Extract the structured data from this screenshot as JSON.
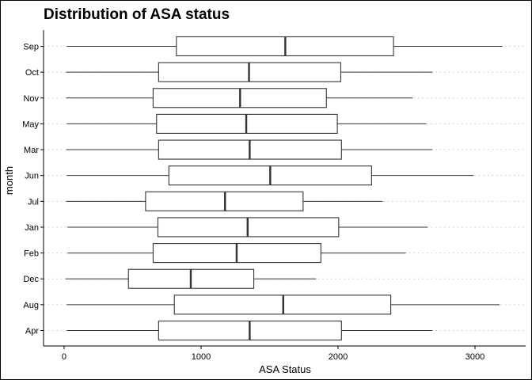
{
  "chart_data": {
    "type": "boxplot",
    "orientation": "horizontal",
    "title": "Distribution of ASA status",
    "xlabel": "ASA Status",
    "ylabel": "month",
    "xlim": [
      -150,
      3370
    ],
    "x_ticks": [
      0,
      1000,
      2000,
      3000
    ],
    "x_tick_labels": [
      "0",
      "1000",
      "2000",
      "3000"
    ],
    "grid": "dotted horizontal lines at each category",
    "categories": [
      "Apr",
      "Aug",
      "Dec",
      "Feb",
      "Jan",
      "Jul",
      "Jun",
      "Mar",
      "May",
      "Nov",
      "Oct",
      "Sep"
    ],
    "series": [
      {
        "boxes": [
          {
            "month": "Apr",
            "whisker_low": 20,
            "q1": 690,
            "median": 1355,
            "q3": 2025,
            "whisker_high": 2690
          },
          {
            "month": "Aug",
            "whisker_low": 20,
            "q1": 805,
            "median": 1600,
            "q3": 2385,
            "whisker_high": 3180
          },
          {
            "month": "Dec",
            "whisker_low": 10,
            "q1": 470,
            "median": 925,
            "q3": 1385,
            "whisker_high": 1840
          },
          {
            "month": "Feb",
            "whisker_low": 25,
            "q1": 650,
            "median": 1260,
            "q3": 1875,
            "whisker_high": 2495
          },
          {
            "month": "Jan",
            "whisker_low": 25,
            "q1": 685,
            "median": 1340,
            "q3": 2005,
            "whisker_high": 2655
          },
          {
            "month": "Jul",
            "whisker_low": 15,
            "q1": 595,
            "median": 1175,
            "q3": 1745,
            "whisker_high": 2325
          },
          {
            "month": "Jun",
            "whisker_low": 20,
            "q1": 765,
            "median": 1505,
            "q3": 2245,
            "whisker_high": 2990
          },
          {
            "month": "Mar",
            "whisker_low": 15,
            "q1": 690,
            "median": 1355,
            "q3": 2025,
            "whisker_high": 2690
          },
          {
            "month": "May",
            "whisker_low": 20,
            "q1": 675,
            "median": 1330,
            "q3": 1995,
            "whisker_high": 2645
          },
          {
            "month": "Nov",
            "whisker_low": 15,
            "q1": 650,
            "median": 1285,
            "q3": 1915,
            "whisker_high": 2545
          },
          {
            "month": "Oct",
            "whisker_low": 15,
            "q1": 690,
            "median": 1350,
            "q3": 2020,
            "whisker_high": 2690
          },
          {
            "month": "Sep",
            "whisker_low": 20,
            "q1": 820,
            "median": 1615,
            "q3": 2405,
            "whisker_high": 3200
          }
        ]
      }
    ],
    "colors": {
      "box_fill": "#ffffff",
      "box_stroke": "#333333",
      "grid": "#c8c8c8",
      "axis": "#000000"
    }
  }
}
